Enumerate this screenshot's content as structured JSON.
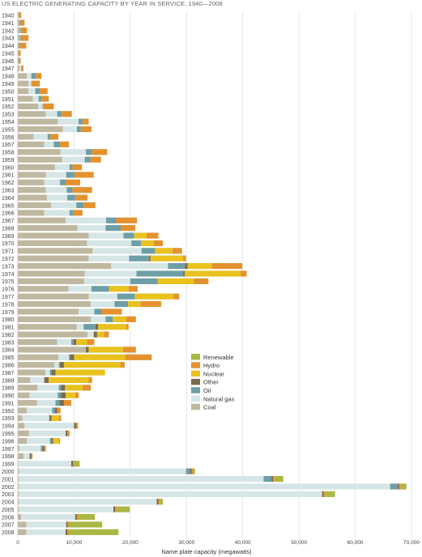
{
  "chart_data": {
    "type": "bar",
    "orientation": "horizontal",
    "stacked": true,
    "title": "US ELECTRIC GENERATING CAPACITY BY YEAR IN SERVICE, 1940—2008",
    "xlabel": "Name plate capacity (megawatts)",
    "xlim": [
      0,
      70000
    ],
    "xticks": [
      0,
      10000,
      20000,
      30000,
      40000,
      50000,
      60000,
      70000
    ],
    "xtick_labels": [
      "0",
      "10,000",
      "20,000",
      "30,000",
      "40,000",
      "50,000",
      "60,000",
      "70,000"
    ],
    "grid": "vertical",
    "legend_position": "right",
    "categories": [
      "1940",
      "1941",
      "1942",
      "1943",
      "1944",
      "1945",
      "1946",
      "1947",
      "1948",
      "1949",
      "1950",
      "1951",
      "1952",
      "1953",
      "1954",
      "1955",
      "1956",
      "1957",
      "1958",
      "1959",
      "1960",
      "1961",
      "1962",
      "1963",
      "1964",
      "1965",
      "1966",
      "1967",
      "1968",
      "1969",
      "1970",
      "1971",
      "1972",
      "1973",
      "1974",
      "1975",
      "1976",
      "1977",
      "1978",
      "1979",
      "1980",
      "1981",
      "1982",
      "1983",
      "1984",
      "1985",
      "1986",
      "1987",
      "1988",
      "1989",
      "1990",
      "1991",
      "1992",
      "1993",
      "1994",
      "1995",
      "1996",
      "1997",
      "1998",
      "1999",
      "2000",
      "2001",
      "2002",
      "2003",
      "2004",
      "2005",
      "2006",
      "2007",
      "2008"
    ],
    "series": [
      {
        "name": "Coal",
        "color": "#bfb8a0",
        "values": [
          200,
          300,
          500,
          500,
          200,
          100,
          100,
          300,
          1600,
          1900,
          1900,
          2700,
          3600,
          5000,
          7100,
          8000,
          2800,
          4700,
          7600,
          7900,
          6600,
          5000,
          4700,
          5000,
          5200,
          5900,
          4700,
          8500,
          10600,
          12600,
          12300,
          13300,
          12600,
          16600,
          11900,
          11800,
          9000,
          12600,
          13000,
          10800,
          13000,
          10500,
          12400,
          7000,
          12100,
          7200,
          6500,
          4900,
          2200,
          3500,
          2100,
          3400,
          1600,
          800,
          1200,
          2000,
          1600,
          300,
          1000,
          100,
          200,
          200,
          200,
          200,
          200,
          200,
          600,
          1500,
          1500
        ]
      },
      {
        "name": "Natural gas",
        "color": "#d6e6e6",
        "values": [
          0,
          0,
          0,
          0,
          0,
          0,
          0,
          300,
          800,
          500,
          1200,
          1000,
          800,
          2000,
          3700,
          2500,
          2500,
          1700,
          4500,
          4000,
          2600,
          3600,
          2800,
          3700,
          3600,
          4500,
          4500,
          7200,
          5000,
          6200,
          7900,
          8700,
          7200,
          10100,
          9200,
          8200,
          4100,
          5100,
          4200,
          2800,
          2600,
          1200,
          1100,
          2500,
          0,
          1900,
          800,
          800,
          2500,
          3800,
          5000,
          3300,
          4500,
          4800,
          8800,
          6500,
          4100,
          3800,
          1100,
          9400,
          29700,
          43500,
          66000,
          53900,
          24500,
          16800,
          9600,
          7100,
          7000
        ]
      },
      {
        "name": "Oil",
        "color": "#6e9ea6",
        "values": [
          0,
          200,
          100,
          200,
          200,
          0,
          100,
          0,
          800,
          100,
          800,
          500,
          100,
          800,
          700,
          700,
          500,
          1100,
          1100,
          1000,
          500,
          1500,
          1000,
          1000,
          1400,
          1300,
          700,
          1800,
          2700,
          1900,
          1700,
          2400,
          3500,
          3000,
          8300,
          4900,
          3100,
          3100,
          2400,
          1300,
          1300,
          2100,
          0,
          0,
          0,
          0,
          0,
          0,
          0,
          0,
          0,
          0,
          0,
          0,
          0,
          0,
          0,
          0,
          0,
          0,
          700,
          1400,
          1300,
          0,
          0,
          0,
          0,
          0,
          0
        ]
      },
      {
        "name": "Other",
        "color": "#7a6b50",
        "values": [
          0,
          0,
          0,
          0,
          0,
          0,
          0,
          0,
          0,
          0,
          0,
          0,
          0,
          0,
          0,
          0,
          0,
          0,
          0,
          0,
          0,
          0,
          0,
          0,
          0,
          0,
          0,
          0,
          0,
          0,
          0,
          0,
          300,
          500,
          300,
          0,
          0,
          0,
          0,
          0,
          0,
          500,
          600,
          500,
          500,
          700,
          700,
          700,
          800,
          700,
          800,
          800,
          400,
          400,
          400,
          300,
          300,
          300,
          300,
          300,
          300,
          300,
          300,
          300,
          300,
          300,
          300,
          300,
          300
        ]
      },
      {
        "name": "Nuclear",
        "color": "#e9c21e",
        "values": [
          0,
          0,
          0,
          0,
          0,
          0,
          0,
          0,
          0,
          0,
          0,
          0,
          0,
          0,
          0,
          0,
          0,
          0,
          0,
          0,
          0,
          0,
          0,
          0,
          0,
          0,
          0,
          0,
          0,
          0,
          0,
          0,
          0,
          0,
          0,
          0,
          0,
          0,
          0,
          0,
          0,
          0,
          0,
          0,
          0,
          0,
          0,
          0,
          0,
          0,
          0,
          0,
          0,
          0,
          0,
          0,
          0,
          0,
          0,
          0,
          0,
          0,
          0,
          0,
          0,
          0,
          0,
          0,
          0
        ]
      },
      {
        "name": "Hydro",
        "color": "#e4922f",
        "values": [
          400,
          700,
          1000,
          1200,
          1100,
          400,
          300,
          400,
          1000,
          1400,
          1400,
          1300,
          1900,
          1800,
          1100,
          1900,
          1400,
          1600,
          2700,
          1900,
          1700,
          3400,
          2600,
          3500,
          2200,
          2100,
          1600,
          3700,
          2600,
          2100,
          1600,
          1700,
          500,
          5400,
          1100,
          2600,
          1600,
          1000,
          3700,
          3600,
          1700,
          400,
          900,
          1300,
          2300,
          4700,
          800,
          0,
          600,
          1500,
          600,
          1300,
          600,
          400,
          300,
          400,
          200,
          300,
          200,
          300,
          300,
          300,
          300,
          300,
          300,
          300,
          300,
          300,
          300
        ]
      },
      {
        "name": "Renewable",
        "color": "#a9b842",
        "values": [
          0,
          0,
          0,
          0,
          0,
          0,
          0,
          0,
          0,
          0,
          0,
          0,
          0,
          0,
          0,
          0,
          0,
          0,
          0,
          0,
          0,
          0,
          0,
          0,
          0,
          0,
          0,
          0,
          0,
          0,
          0,
          0,
          0,
          0,
          0,
          0,
          0,
          0,
          0,
          0,
          0,
          0,
          0,
          0,
          0,
          0,
          0,
          0,
          0,
          0,
          0,
          0,
          0,
          0,
          0,
          0,
          0,
          0,
          0,
          900,
          300,
          1500,
          1000,
          1700,
          500,
          2300,
          2900,
          5800,
          8800
        ]
      }
    ],
    "legend_entries": [
      "Renewable",
      "Hydro",
      "Nuclear",
      "Other",
      "Oil",
      "Natural gas",
      "Coal"
    ]
  }
}
